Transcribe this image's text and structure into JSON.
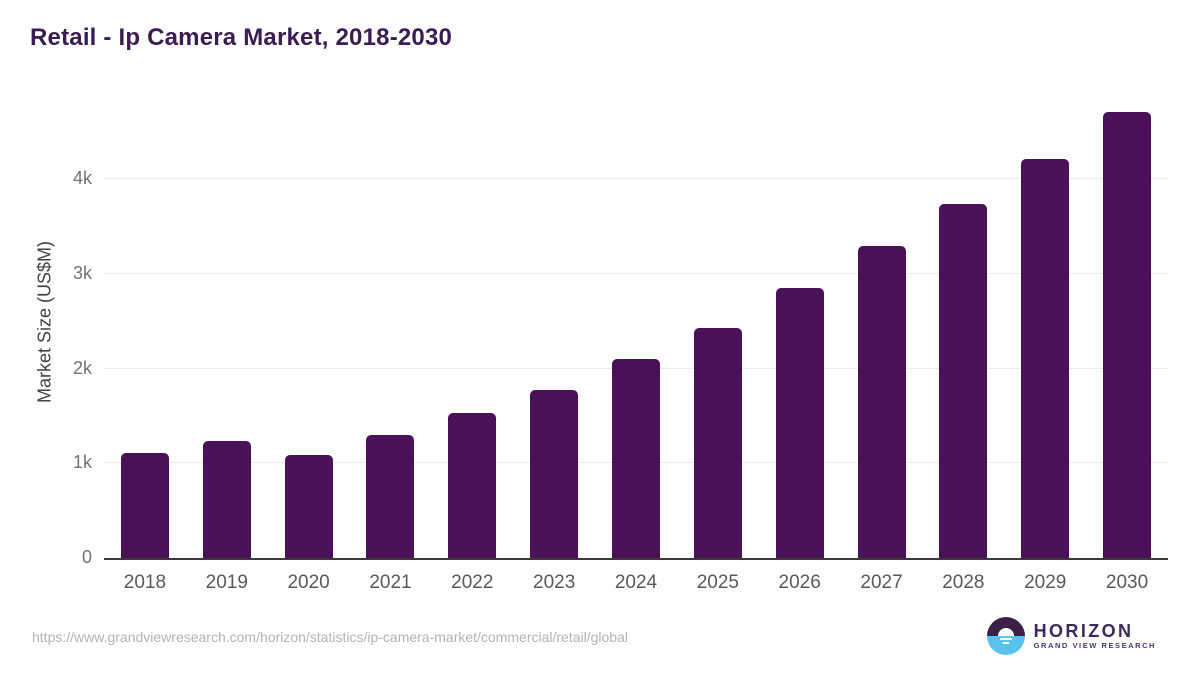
{
  "chart_data": {
    "type": "bar",
    "title": "Retail - Ip Camera Market, 2018-2030",
    "xlabel": "",
    "ylabel": "Market Size (US$M)",
    "categories": [
      "2018",
      "2019",
      "2020",
      "2021",
      "2022",
      "2023",
      "2024",
      "2025",
      "2026",
      "2027",
      "2028",
      "2029",
      "2030"
    ],
    "values": [
      1105,
      1235,
      1085,
      1300,
      1530,
      1770,
      2095,
      2425,
      2845,
      3290,
      3735,
      4210,
      4710
    ],
    "yticks": [
      {
        "label": "0",
        "value": 0
      },
      {
        "label": "1k",
        "value": 1000
      },
      {
        "label": "2k",
        "value": 2000
      },
      {
        "label": "3k",
        "value": 3000
      },
      {
        "label": "4k",
        "value": 4000
      }
    ],
    "ylim": [
      0,
      4830
    ],
    "grid": true,
    "legend_position": "none",
    "bar_color": "#4a1158"
  },
  "colors": {
    "title": "#3a1c52",
    "bar": "#4a1158",
    "gridline": "#ececec",
    "axis_line": "#3a3a3c",
    "x_label": "#58595b",
    "y_tick": "#717275",
    "y_title": "#414143",
    "source_url": "#b3b3b3",
    "logo_purple": "#3a2147",
    "logo_blue": "#58c2ee"
  },
  "footer": {
    "source_url": "https://www.grandviewresearch.com/horizon/statistics/ip-camera-market/commercial/retail/global",
    "logo": {
      "brand": "HORIZON",
      "subtitle": "GRAND VIEW RESEARCH"
    }
  }
}
